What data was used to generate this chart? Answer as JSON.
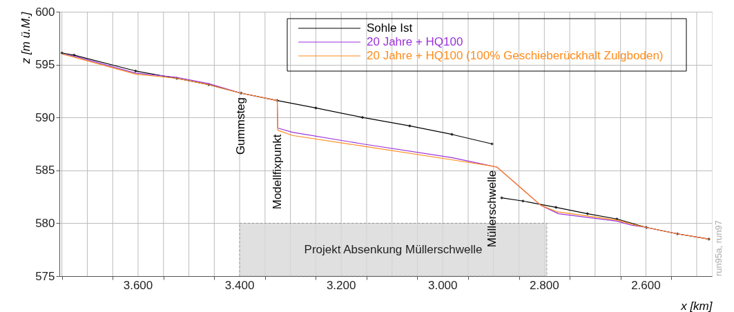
{
  "chart_data": {
    "type": "line",
    "xlabel": "x [km]",
    "ylabel": "z [m ü.M.]",
    "xlim": [
      3.755,
      2.47
    ],
    "ylim": [
      575,
      600
    ],
    "xticks": [
      {
        "value": 3.75,
        "label": null
      },
      {
        "value": 3.7,
        "label": null
      },
      {
        "value": 3.65,
        "label": null
      },
      {
        "value": 3.6,
        "label": "3.600"
      },
      {
        "value": 3.55,
        "label": null
      },
      {
        "value": 3.5,
        "label": null
      },
      {
        "value": 3.45,
        "label": null
      },
      {
        "value": 3.4,
        "label": "3.400"
      },
      {
        "value": 3.35,
        "label": null
      },
      {
        "value": 3.3,
        "label": null
      },
      {
        "value": 3.25,
        "label": null
      },
      {
        "value": 3.2,
        "label": "3.200"
      },
      {
        "value": 3.15,
        "label": null
      },
      {
        "value": 3.1,
        "label": null
      },
      {
        "value": 3.05,
        "label": null
      },
      {
        "value": 3.0,
        "label": "3.000"
      },
      {
        "value": 2.95,
        "label": null
      },
      {
        "value": 2.9,
        "label": null
      },
      {
        "value": 2.85,
        "label": null
      },
      {
        "value": 2.8,
        "label": "2.800"
      },
      {
        "value": 2.75,
        "label": null
      },
      {
        "value": 2.7,
        "label": null
      },
      {
        "value": 2.65,
        "label": null
      },
      {
        "value": 2.6,
        "label": "2.600"
      },
      {
        "value": 2.55,
        "label": null
      },
      {
        "value": 2.5,
        "label": null
      }
    ],
    "yticks": [
      575,
      580,
      585,
      590,
      595,
      600
    ],
    "grid": true,
    "legend": "top right",
    "series": [
      {
        "name": "Sohle Ist",
        "color": "#000000",
        "marker": "diamond",
        "x": [
          3.75,
          3.726,
          3.605,
          3.524,
          3.461,
          3.397,
          3.326,
          3.25,
          3.158,
          3.065,
          2.982,
          2.903,
          2.893,
          2.884,
          2.842,
          2.777,
          2.715,
          2.657,
          2.599,
          2.538,
          2.476
        ],
        "values": [
          596.1,
          595.9,
          594.4,
          593.7,
          593.1,
          592.3,
          591.6,
          590.9,
          590.0,
          589.2,
          588.4,
          587.5,
          null,
          582.4,
          582.1,
          581.5,
          580.9,
          580.4,
          579.6,
          579.0,
          578.5
        ]
      },
      {
        "name": "20 Jahre + HQ100",
        "color": "#9b30d9",
        "x": [
          3.75,
          3.726,
          3.605,
          3.524,
          3.461,
          3.397,
          3.326,
          3.325,
          3.296,
          3.158,
          2.982,
          2.903,
          2.893,
          2.807,
          2.772,
          2.657,
          2.627,
          2.599,
          2.538,
          2.476
        ],
        "values": [
          596.0,
          595.8,
          594.2,
          593.8,
          593.2,
          592.3,
          591.6,
          589.0,
          588.6,
          587.5,
          586.2,
          585.4,
          585.3,
          581.7,
          580.9,
          580.2,
          579.8,
          579.6,
          579.0,
          578.5
        ]
      },
      {
        "name": "20 Jahre + HQ100 (100% Geschieberückhalt Zulgboden)",
        "color": "#ff8c1a",
        "x": [
          3.75,
          3.726,
          3.605,
          3.524,
          3.461,
          3.397,
          3.326,
          3.325,
          3.296,
          3.158,
          2.982,
          2.903,
          2.893,
          2.807,
          2.776,
          2.657,
          2.627,
          2.599,
          2.538,
          2.476
        ],
        "values": [
          596.0,
          595.7,
          594.1,
          593.7,
          593.1,
          592.3,
          591.6,
          588.8,
          588.3,
          587.3,
          586.0,
          585.4,
          585.3,
          581.7,
          581.1,
          580.3,
          579.9,
          579.6,
          579.0,
          578.5
        ]
      }
    ],
    "bands": [
      {
        "axis": "x",
        "from": 3.4,
        "to": 2.795,
        "label": "Projekt Absenkung Müllerschwelle",
        "color": "#d9d9d9"
      }
    ],
    "annotations": [
      {
        "text": "Gummsteg",
        "x": 3.397,
        "y": 592.3
      },
      {
        "text": "Modellfixpunkt",
        "x": 3.325,
        "y": 588.8
      },
      {
        "text": "Müllerschwelle",
        "x": 2.903,
        "y": 585.4
      },
      "run95a, run97"
    ]
  }
}
